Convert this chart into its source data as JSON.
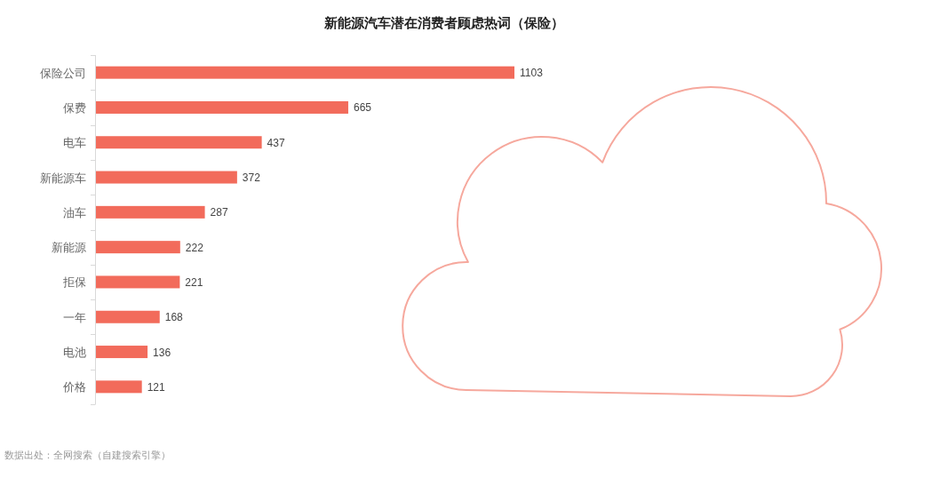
{
  "chart_data": {
    "type": "bar",
    "orientation": "horizontal",
    "title": "新能源汽车潜在消费者顾虑热词（保险）",
    "categories": [
      "保险公司",
      "保费",
      "电车",
      "新能源车",
      "油车",
      "新能源",
      "拒保",
      "一年",
      "电池",
      "价格"
    ],
    "values": [
      1103,
      665,
      437,
      372,
      287,
      222,
      221,
      168,
      136,
      121
    ],
    "color": "#f26b5b",
    "data_labels": true,
    "annotations": [
      "数据出处：全网搜索（自建搜索引擎）"
    ]
  }
}
